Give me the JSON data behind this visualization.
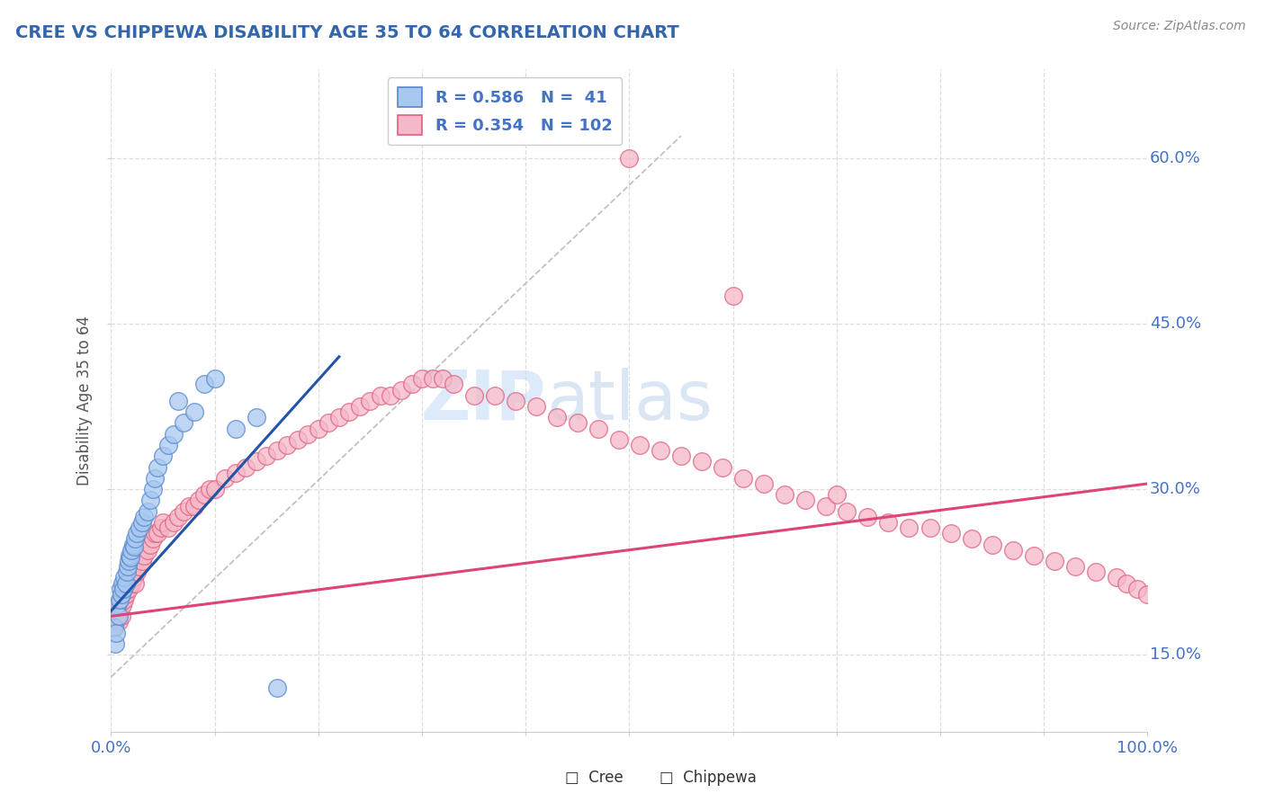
{
  "title": "CREE VS CHIPPEWA DISABILITY AGE 35 TO 64 CORRELATION CHART",
  "source": "Source: ZipAtlas.com",
  "ylabel": "Disability Age 35 to 64",
  "xlim": [
    0.0,
    1.0
  ],
  "ylim": [
    0.08,
    0.68
  ],
  "ytick_vals": [
    0.15,
    0.3,
    0.45,
    0.6
  ],
  "ytick_labels": [
    "15.0%",
    "30.0%",
    "45.0%",
    "60.0%"
  ],
  "xtick_start_label": "0.0%",
  "xtick_end_label": "100.0%",
  "cree_color": "#a8c8f0",
  "chippewa_color": "#f5b8c8",
  "cree_edge": "#5588cc",
  "chippewa_edge": "#e06080",
  "cree_R": 0.586,
  "cree_N": 41,
  "chippewa_R": 0.354,
  "chippewa_N": 102,
  "title_color": "#3366aa",
  "tick_color": "#4472C4",
  "legend_R_color": "#4472C4",
  "background_color": "#ffffff",
  "grid_color": "#dddddd",
  "cree_trend_color": "#2255aa",
  "chippewa_trend_color": "#dd4477",
  "diag_color": "#bbbbbb",
  "cree_scatter_x": [
    0.003,
    0.004,
    0.005,
    0.006,
    0.007,
    0.008,
    0.009,
    0.01,
    0.011,
    0.012,
    0.013,
    0.014,
    0.015,
    0.016,
    0.017,
    0.018,
    0.019,
    0.02,
    0.021,
    0.022,
    0.023,
    0.025,
    0.027,
    0.03,
    0.032,
    0.035,
    0.038,
    0.04,
    0.042,
    0.045,
    0.05,
    0.055,
    0.06,
    0.065,
    0.07,
    0.08,
    0.09,
    0.1,
    0.12,
    0.14,
    0.16
  ],
  "cree_scatter_y": [
    0.175,
    0.16,
    0.17,
    0.195,
    0.185,
    0.2,
    0.21,
    0.205,
    0.215,
    0.21,
    0.22,
    0.215,
    0.225,
    0.23,
    0.235,
    0.24,
    0.238,
    0.245,
    0.25,
    0.248,
    0.255,
    0.26,
    0.265,
    0.27,
    0.275,
    0.28,
    0.29,
    0.3,
    0.31,
    0.32,
    0.33,
    0.34,
    0.35,
    0.38,
    0.36,
    0.37,
    0.395,
    0.4,
    0.355,
    0.365,
    0.12
  ],
  "chippewa_scatter_x": [
    0.003,
    0.005,
    0.006,
    0.007,
    0.008,
    0.009,
    0.01,
    0.011,
    0.012,
    0.013,
    0.014,
    0.015,
    0.016,
    0.017,
    0.018,
    0.019,
    0.02,
    0.021,
    0.022,
    0.023,
    0.025,
    0.027,
    0.03,
    0.032,
    0.035,
    0.038,
    0.04,
    0.042,
    0.045,
    0.048,
    0.05,
    0.055,
    0.06,
    0.065,
    0.07,
    0.075,
    0.08,
    0.085,
    0.09,
    0.095,
    0.1,
    0.11,
    0.12,
    0.13,
    0.14,
    0.15,
    0.16,
    0.17,
    0.18,
    0.19,
    0.2,
    0.21,
    0.22,
    0.23,
    0.24,
    0.25,
    0.26,
    0.27,
    0.28,
    0.29,
    0.3,
    0.31,
    0.32,
    0.33,
    0.35,
    0.37,
    0.39,
    0.41,
    0.43,
    0.45,
    0.47,
    0.49,
    0.51,
    0.53,
    0.55,
    0.57,
    0.59,
    0.61,
    0.63,
    0.65,
    0.67,
    0.69,
    0.71,
    0.73,
    0.75,
    0.77,
    0.79,
    0.81,
    0.83,
    0.85,
    0.87,
    0.89,
    0.91,
    0.93,
    0.95,
    0.97,
    0.98,
    0.99,
    1.0,
    0.5,
    0.6,
    0.7
  ],
  "chippewa_scatter_y": [
    0.175,
    0.185,
    0.19,
    0.18,
    0.195,
    0.2,
    0.185,
    0.195,
    0.205,
    0.2,
    0.205,
    0.21,
    0.215,
    0.21,
    0.215,
    0.22,
    0.215,
    0.22,
    0.22,
    0.215,
    0.225,
    0.23,
    0.235,
    0.24,
    0.245,
    0.25,
    0.255,
    0.26,
    0.26,
    0.265,
    0.27,
    0.265,
    0.27,
    0.275,
    0.28,
    0.285,
    0.285,
    0.29,
    0.295,
    0.3,
    0.3,
    0.31,
    0.315,
    0.32,
    0.325,
    0.33,
    0.335,
    0.34,
    0.345,
    0.35,
    0.355,
    0.36,
    0.365,
    0.37,
    0.375,
    0.38,
    0.385,
    0.385,
    0.39,
    0.395,
    0.4,
    0.4,
    0.4,
    0.395,
    0.385,
    0.385,
    0.38,
    0.375,
    0.365,
    0.36,
    0.355,
    0.345,
    0.34,
    0.335,
    0.33,
    0.325,
    0.32,
    0.31,
    0.305,
    0.295,
    0.29,
    0.285,
    0.28,
    0.275,
    0.27,
    0.265,
    0.265,
    0.26,
    0.255,
    0.25,
    0.245,
    0.24,
    0.235,
    0.23,
    0.225,
    0.22,
    0.215,
    0.21,
    0.205,
    0.6,
    0.475,
    0.295
  ]
}
